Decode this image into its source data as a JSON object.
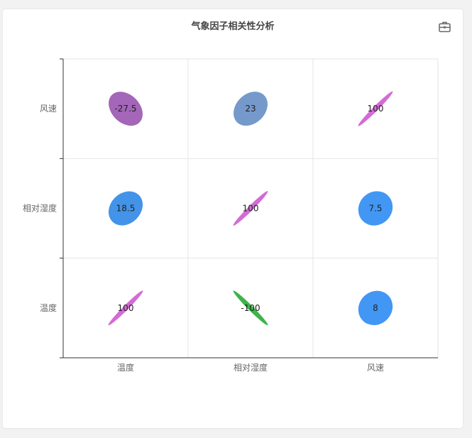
{
  "toolbox": {
    "icon": "toolbox-icon"
  },
  "chart_data": {
    "type": "heatmap",
    "title": "气象因子相关性分析",
    "x_categories": [
      "温度",
      "相对湿度",
      "风速"
    ],
    "y_categories": [
      "温度",
      "相对湿度",
      "风速"
    ],
    "cells": [
      {
        "x": "温度",
        "y": "温度",
        "value": 100,
        "color": "#d36bd6"
      },
      {
        "x": "相对湿度",
        "y": "温度",
        "value": -100,
        "color": "#3db34b"
      },
      {
        "x": "风速",
        "y": "温度",
        "value": 8,
        "color": "#4297f4"
      },
      {
        "x": "温度",
        "y": "相对湿度",
        "value": 18.5,
        "color": "#4394e8"
      },
      {
        "x": "相对湿度",
        "y": "相对湿度",
        "value": 100,
        "color": "#d36bd6"
      },
      {
        "x": "风速",
        "y": "相对湿度",
        "value": 7.5,
        "color": "#4297f4"
      },
      {
        "x": "温度",
        "y": "风速",
        "value": -27.5,
        "color": "#a366b8"
      },
      {
        "x": "相对湿度",
        "y": "风速",
        "value": 23,
        "color": "#7599cb"
      },
      {
        "x": "风速",
        "y": "风速",
        "value": 100,
        "color": "#d36bd6"
      }
    ],
    "grid": true,
    "legend": "none"
  }
}
